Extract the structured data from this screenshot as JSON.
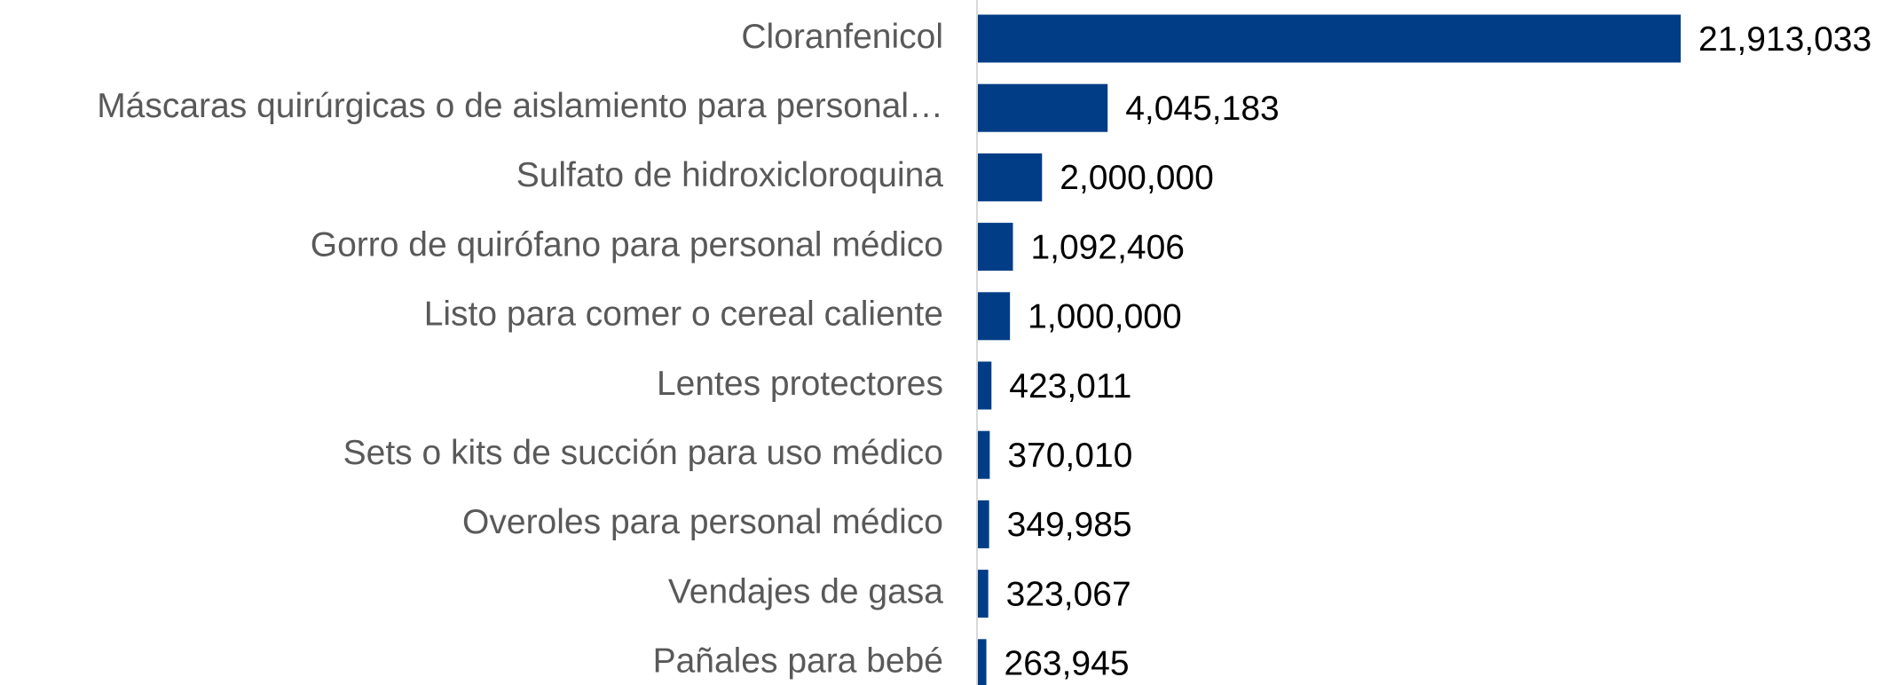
{
  "chart_data": {
    "type": "bar",
    "orientation": "horizontal",
    "categories": [
      "Cloranfenicol",
      "Máscaras quirúrgicas o de aislamiento para personal…",
      "Sulfato de hidroxicloroquina",
      "Gorro de quirófano para personal médico",
      "Listo para comer o cereal caliente",
      "Lentes protectores",
      "Sets o kits de succión para uso médico",
      "Overoles para personal médico",
      "Vendajes de gasa",
      "Pañales para bebé"
    ],
    "values": [
      21913033,
      4045183,
      2000000,
      1092406,
      1000000,
      423011,
      370010,
      349985,
      323067,
      263945
    ],
    "value_labels": [
      "21,913,033",
      "4,045,183",
      "2,000,000",
      "1,092,406",
      "1,000,000",
      "423,011",
      "370,010",
      "349,985",
      "323,067",
      "263,945"
    ],
    "color": "#003d86"
  }
}
